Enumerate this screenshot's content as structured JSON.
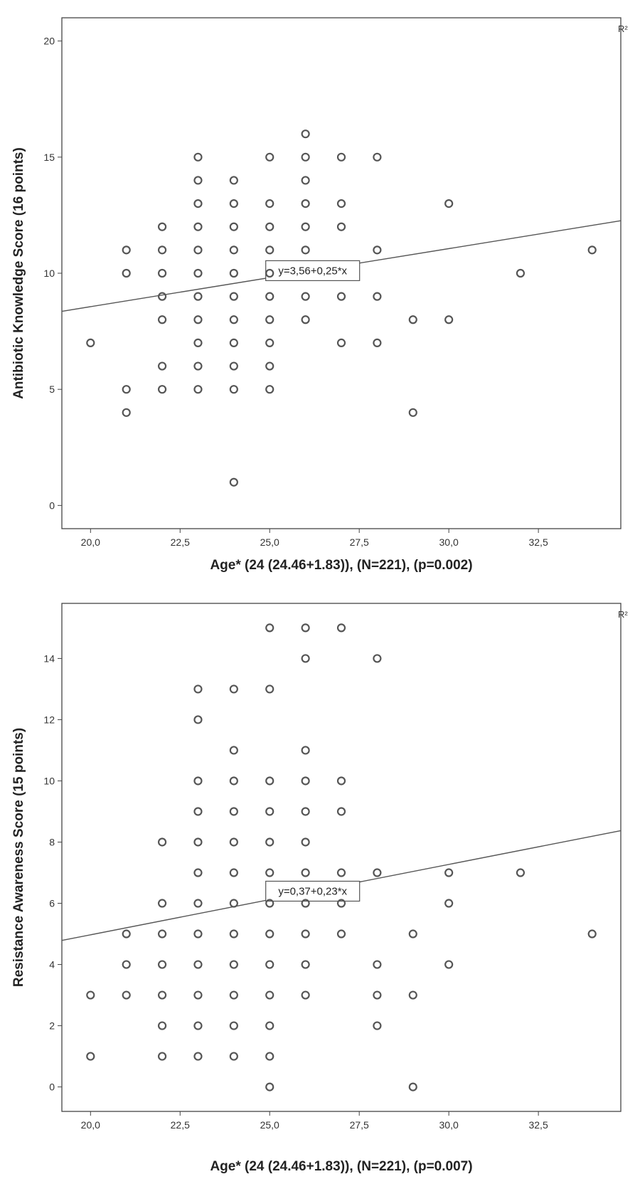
{
  "chart_data": [
    {
      "type": "scatter",
      "xlabel": "Age* (24 (24.46+1.83)), (N=221), (p=0.002)",
      "ylabel": "Antibiotic Knowledge Score (16 points)",
      "xlim": [
        19.2,
        34.8
      ],
      "ylim": [
        -1,
        21
      ],
      "xticks": [
        20,
        22.5,
        25,
        27.5,
        30,
        32.5
      ],
      "xtick_labels": [
        "20,0",
        "22,5",
        "25,0",
        "27,5",
        "30,0",
        "32,5"
      ],
      "yticks": [
        0,
        5,
        10,
        15,
        20
      ],
      "ytick_labels": [
        "0",
        "5",
        "10",
        "15",
        "20"
      ],
      "fit_label": "y=3,56+0,25*x",
      "fit": {
        "intercept": 3.56,
        "slope": 0.25,
        "label_x": 26.2
      },
      "r2_label": "R²",
      "points": [
        [
          20,
          7
        ],
        [
          21,
          11
        ],
        [
          21,
          10
        ],
        [
          21,
          5
        ],
        [
          21,
          4
        ],
        [
          22,
          12
        ],
        [
          22,
          11
        ],
        [
          22,
          10
        ],
        [
          22,
          9
        ],
        [
          22,
          8
        ],
        [
          22,
          6
        ],
        [
          22,
          5
        ],
        [
          23,
          15
        ],
        [
          23,
          14
        ],
        [
          23,
          13
        ],
        [
          23,
          12
        ],
        [
          23,
          11
        ],
        [
          23,
          10
        ],
        [
          23,
          9
        ],
        [
          23,
          8
        ],
        [
          23,
          7
        ],
        [
          23,
          6
        ],
        [
          23,
          5
        ],
        [
          24,
          14
        ],
        [
          24,
          13
        ],
        [
          24,
          12
        ],
        [
          24,
          11
        ],
        [
          24,
          10
        ],
        [
          24,
          9
        ],
        [
          24,
          8
        ],
        [
          24,
          7
        ],
        [
          24,
          6
        ],
        [
          24,
          5
        ],
        [
          24,
          1
        ],
        [
          25,
          15
        ],
        [
          25,
          13
        ],
        [
          25,
          12
        ],
        [
          25,
          11
        ],
        [
          25,
          10
        ],
        [
          25,
          9
        ],
        [
          25,
          8
        ],
        [
          25,
          7
        ],
        [
          25,
          6
        ],
        [
          25,
          5
        ],
        [
          26,
          16
        ],
        [
          26,
          15
        ],
        [
          26,
          14
        ],
        [
          26,
          13
        ],
        [
          26,
          12
        ],
        [
          26,
          11
        ],
        [
          26,
          9
        ],
        [
          26,
          8
        ],
        [
          27,
          15
        ],
        [
          27,
          13
        ],
        [
          27,
          12
        ],
        [
          27,
          9
        ],
        [
          27,
          7
        ],
        [
          28,
          15
        ],
        [
          28,
          11
        ],
        [
          28,
          9
        ],
        [
          28,
          7
        ],
        [
          29,
          8
        ],
        [
          29,
          4
        ],
        [
          30,
          13
        ],
        [
          30,
          8
        ],
        [
          32,
          10
        ],
        [
          34,
          11
        ]
      ]
    },
    {
      "type": "scatter",
      "xlabel": "Age* (24 (24.46+1.83)), (N=221), (p=0.007)",
      "ylabel": "Resistance Awareness Score (15 points)",
      "xlim": [
        19.2,
        34.8
      ],
      "ylim": [
        -0.8,
        15.8
      ],
      "xticks": [
        20,
        22.5,
        25,
        27.5,
        30,
        32.5
      ],
      "xtick_labels": [
        "20,0",
        "22,5",
        "25,0",
        "27,5",
        "30,0",
        "32,5"
      ],
      "yticks": [
        0,
        2,
        4,
        6,
        8,
        10,
        12,
        14
      ],
      "ytick_labels": [
        "0",
        "2",
        "4",
        "6",
        "8",
        "10",
        "12",
        "14"
      ],
      "fit_label": "y=0,37+0,23*x",
      "fit": {
        "intercept": 0.37,
        "slope": 0.23,
        "label_x": 26.2
      },
      "r2_label": "R²",
      "points": [
        [
          20,
          3
        ],
        [
          20,
          1
        ],
        [
          21,
          5
        ],
        [
          21,
          4
        ],
        [
          21,
          3
        ],
        [
          22,
          8
        ],
        [
          22,
          6
        ],
        [
          22,
          5
        ],
        [
          22,
          4
        ],
        [
          22,
          3
        ],
        [
          22,
          2
        ],
        [
          22,
          1
        ],
        [
          23,
          13
        ],
        [
          23,
          12
        ],
        [
          23,
          10
        ],
        [
          23,
          9
        ],
        [
          23,
          8
        ],
        [
          23,
          7
        ],
        [
          23,
          6
        ],
        [
          23,
          5
        ],
        [
          23,
          4
        ],
        [
          23,
          3
        ],
        [
          23,
          2
        ],
        [
          23,
          1
        ],
        [
          24,
          13
        ],
        [
          24,
          11
        ],
        [
          24,
          10
        ],
        [
          24,
          9
        ],
        [
          24,
          8
        ],
        [
          24,
          7
        ],
        [
          24,
          6
        ],
        [
          24,
          5
        ],
        [
          24,
          4
        ],
        [
          24,
          3
        ],
        [
          24,
          2
        ],
        [
          24,
          1
        ],
        [
          25,
          15
        ],
        [
          25,
          13
        ],
        [
          25,
          10
        ],
        [
          25,
          9
        ],
        [
          25,
          8
        ],
        [
          25,
          7
        ],
        [
          25,
          6
        ],
        [
          25,
          5
        ],
        [
          25,
          4
        ],
        [
          25,
          3
        ],
        [
          25,
          2
        ],
        [
          25,
          1
        ],
        [
          25,
          0
        ],
        [
          26,
          15
        ],
        [
          26,
          14
        ],
        [
          26,
          11
        ],
        [
          26,
          10
        ],
        [
          26,
          9
        ],
        [
          26,
          8
        ],
        [
          26,
          7
        ],
        [
          26,
          6
        ],
        [
          26,
          5
        ],
        [
          26,
          4
        ],
        [
          26,
          3
        ],
        [
          27,
          15
        ],
        [
          27,
          10
        ],
        [
          27,
          9
        ],
        [
          27,
          7
        ],
        [
          27,
          6
        ],
        [
          27,
          5
        ],
        [
          28,
          14
        ],
        [
          28,
          7
        ],
        [
          28,
          4
        ],
        [
          28,
          3
        ],
        [
          28,
          2
        ],
        [
          29,
          5
        ],
        [
          29,
          3
        ],
        [
          29,
          0
        ],
        [
          30,
          7
        ],
        [
          30,
          6
        ],
        [
          30,
          4
        ],
        [
          32,
          7
        ],
        [
          34,
          5
        ]
      ]
    }
  ]
}
